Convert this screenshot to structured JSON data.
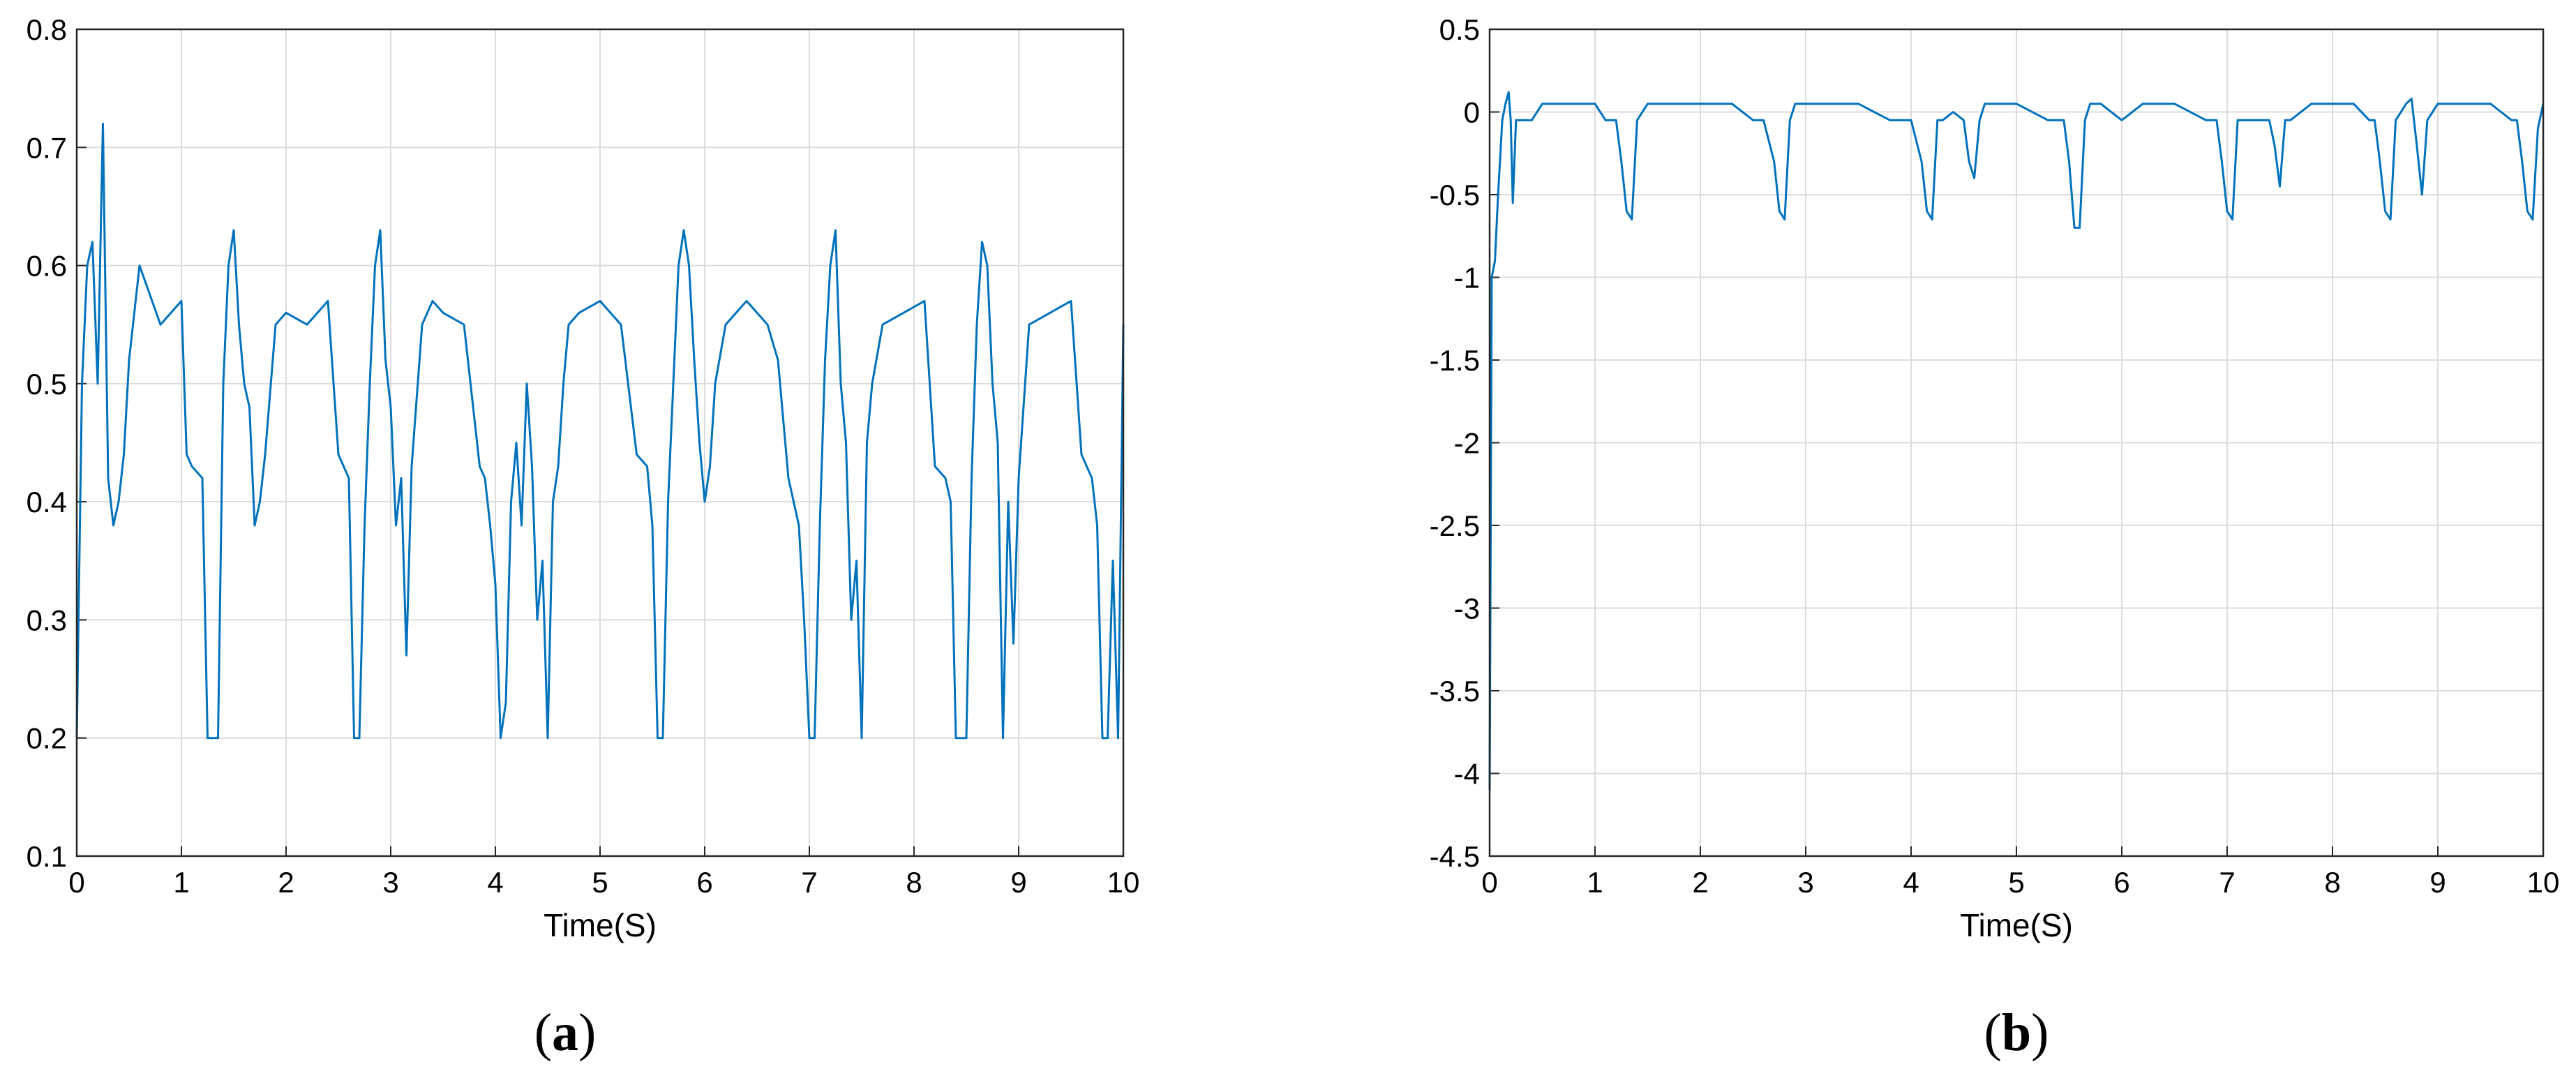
{
  "chart_data": [
    {
      "type": "line",
      "caption_letter": "a",
      "title": "",
      "xlabel": "Time(S)",
      "ylabel": "",
      "xlim": [
        0,
        10
      ],
      "ylim": [
        0.1,
        0.8
      ],
      "xticks": [
        "0",
        "1",
        "2",
        "3",
        "4",
        "5",
        "6",
        "7",
        "8",
        "9",
        "10"
      ],
      "yticks": [
        "0.1",
        "0.2",
        "0.3",
        "0.4",
        "0.5",
        "0.6",
        "0.7",
        "0.8"
      ],
      "grid": true,
      "line_color": "#0072BD",
      "series": [
        {
          "x": [
            0,
            0.05,
            0.1,
            0.15,
            0.2,
            0.25,
            0.3,
            0.35,
            0.4,
            0.45,
            0.5,
            0.55,
            0.6,
            0.8,
            1.0,
            1.05,
            1.1,
            1.2,
            1.25,
            1.3,
            1.35,
            1.4,
            1.45,
            1.5,
            1.55,
            1.6,
            1.65,
            1.7,
            1.75,
            1.8,
            1.9,
            2.0,
            2.2,
            2.4,
            2.5,
            2.6,
            2.65,
            2.7,
            2.75,
            2.8,
            2.85,
            2.9,
            2.95,
            3.0,
            3.05,
            3.1,
            3.15,
            3.2,
            3.3,
            3.4,
            3.5,
            3.7,
            3.85,
            3.9,
            3.95,
            4.0,
            4.05,
            4.1,
            4.15,
            4.2,
            4.25,
            4.3,
            4.35,
            4.4,
            4.45,
            4.5,
            4.55,
            4.6,
            4.65,
            4.7,
            4.8,
            5.0,
            5.2,
            5.35,
            5.45,
            5.5,
            5.55,
            5.6,
            5.65,
            5.7,
            5.75,
            5.8,
            5.85,
            5.9,
            5.95,
            6.0,
            6.05,
            6.1,
            6.2,
            6.4,
            6.5,
            6.6,
            6.7,
            6.8,
            6.9,
            6.95,
            7.0,
            7.05,
            7.1,
            7.15,
            7.2,
            7.25,
            7.3,
            7.35,
            7.4,
            7.45,
            7.5,
            7.55,
            7.6,
            7.7,
            7.9,
            8.1,
            8.2,
            8.3,
            8.35,
            8.4,
            8.45,
            8.5,
            8.55,
            8.6,
            8.65,
            8.7,
            8.75,
            8.8,
            8.85,
            8.9,
            8.95,
            9.0,
            9.1,
            9.3,
            9.5,
            9.6,
            9.7,
            9.75,
            9.8,
            9.85,
            9.9,
            9.95,
            10.0
          ],
          "y": [
            0.2,
            0.5,
            0.6,
            0.62,
            0.5,
            0.72,
            0.42,
            0.38,
            0.4,
            0.44,
            0.52,
            0.56,
            0.6,
            0.55,
            0.57,
            0.44,
            0.43,
            0.42,
            0.2,
            0.2,
            0.2,
            0.5,
            0.6,
            0.63,
            0.55,
            0.5,
            0.48,
            0.38,
            0.4,
            0.44,
            0.55,
            0.56,
            0.55,
            0.57,
            0.44,
            0.42,
            0.2,
            0.2,
            0.38,
            0.5,
            0.6,
            0.63,
            0.52,
            0.48,
            0.38,
            0.42,
            0.27,
            0.43,
            0.55,
            0.57,
            0.56,
            0.55,
            0.43,
            0.42,
            0.38,
            0.33,
            0.2,
            0.23,
            0.4,
            0.45,
            0.38,
            0.5,
            0.43,
            0.3,
            0.35,
            0.2,
            0.4,
            0.43,
            0.5,
            0.55,
            0.56,
            0.57,
            0.55,
            0.44,
            0.43,
            0.38,
            0.2,
            0.2,
            0.4,
            0.5,
            0.6,
            0.63,
            0.6,
            0.52,
            0.45,
            0.4,
            0.43,
            0.5,
            0.55,
            0.57,
            0.56,
            0.55,
            0.52,
            0.42,
            0.38,
            0.3,
            0.2,
            0.2,
            0.38,
            0.52,
            0.6,
            0.63,
            0.5,
            0.45,
            0.3,
            0.35,
            0.2,
            0.45,
            0.5,
            0.55,
            0.56,
            0.57,
            0.43,
            0.42,
            0.4,
            0.2,
            0.2,
            0.2,
            0.42,
            0.55,
            0.62,
            0.6,
            0.5,
            0.45,
            0.2,
            0.4,
            0.28,
            0.42,
            0.55,
            0.56,
            0.57,
            0.44,
            0.42,
            0.38,
            0.2,
            0.2,
            0.35,
            0.2,
            0.55
          ]
        }
      ]
    },
    {
      "type": "line",
      "caption_letter": "b",
      "title": "",
      "xlabel": "Time(S)",
      "ylabel": "",
      "xlim": [
        0,
        10
      ],
      "ylim": [
        -4.5,
        0.5
      ],
      "xticks": [
        "0",
        "1",
        "2",
        "3",
        "4",
        "5",
        "6",
        "7",
        "8",
        "9",
        "10"
      ],
      "yticks": [
        "-4.5",
        "-4",
        "-3.5",
        "-3",
        "-2.5",
        "-2",
        "-1.5",
        "-1",
        "-0.5",
        "0",
        "0.5"
      ],
      "grid": true,
      "line_color": "#0072BD",
      "series": [
        {
          "x": [
            0,
            0.02,
            0.05,
            0.08,
            0.12,
            0.15,
            0.18,
            0.2,
            0.22,
            0.25,
            0.3,
            0.4,
            0.5,
            0.7,
            1.0,
            1.1,
            1.2,
            1.25,
            1.3,
            1.35,
            1.4,
            1.5,
            1.7,
            2.0,
            2.3,
            2.5,
            2.6,
            2.7,
            2.75,
            2.8,
            2.85,
            2.9,
            3.0,
            3.2,
            3.5,
            3.8,
            3.9,
            4.0,
            4.1,
            4.15,
            4.2,
            4.25,
            4.3,
            4.4,
            4.5,
            4.55,
            4.6,
            4.65,
            4.7,
            4.8,
            5.0,
            5.3,
            5.45,
            5.5,
            5.55,
            5.6,
            5.65,
            5.7,
            5.8,
            6.0,
            6.2,
            6.5,
            6.8,
            6.9,
            6.95,
            7.0,
            7.05,
            7.1,
            7.2,
            7.3,
            7.4,
            7.45,
            7.5,
            7.55,
            7.6,
            7.8,
            8.0,
            8.2,
            8.35,
            8.4,
            8.45,
            8.5,
            8.55,
            8.6,
            8.7,
            8.75,
            8.8,
            8.85,
            8.9,
            9.0,
            9.3,
            9.5,
            9.6,
            9.7,
            9.75,
            9.8,
            9.85,
            9.9,
            9.95,
            10.0
          ],
          "y": [
            -4.1,
            -1.0,
            -0.9,
            -0.5,
            -0.05,
            0.05,
            0.12,
            -0.05,
            -0.55,
            -0.05,
            -0.05,
            -0.05,
            0.05,
            0.05,
            0.05,
            -0.05,
            -0.05,
            -0.3,
            -0.6,
            -0.65,
            -0.05,
            0.05,
            0.05,
            0.05,
            0.05,
            -0.05,
            -0.05,
            -0.3,
            -0.6,
            -0.65,
            -0.05,
            0.05,
            0.05,
            0.05,
            0.05,
            -0.05,
            -0.05,
            -0.05,
            -0.3,
            -0.6,
            -0.65,
            -0.05,
            -0.05,
            0.0,
            -0.05,
            -0.3,
            -0.4,
            -0.05,
            0.05,
            0.05,
            0.05,
            -0.05,
            -0.05,
            -0.3,
            -0.7,
            -0.7,
            -0.05,
            0.05,
            0.05,
            -0.05,
            0.05,
            0.05,
            -0.05,
            -0.05,
            -0.3,
            -0.6,
            -0.65,
            -0.05,
            -0.05,
            -0.05,
            -0.05,
            -0.2,
            -0.45,
            -0.05,
            -0.05,
            0.05,
            0.05,
            0.05,
            -0.05,
            -0.05,
            -0.3,
            -0.6,
            -0.65,
            -0.05,
            0.05,
            0.08,
            -0.2,
            -0.5,
            -0.05,
            0.05,
            0.05,
            0.05,
            0.0,
            -0.05,
            -0.05,
            -0.3,
            -0.6,
            -0.65,
            -0.1,
            0.05
          ]
        }
      ]
    }
  ]
}
